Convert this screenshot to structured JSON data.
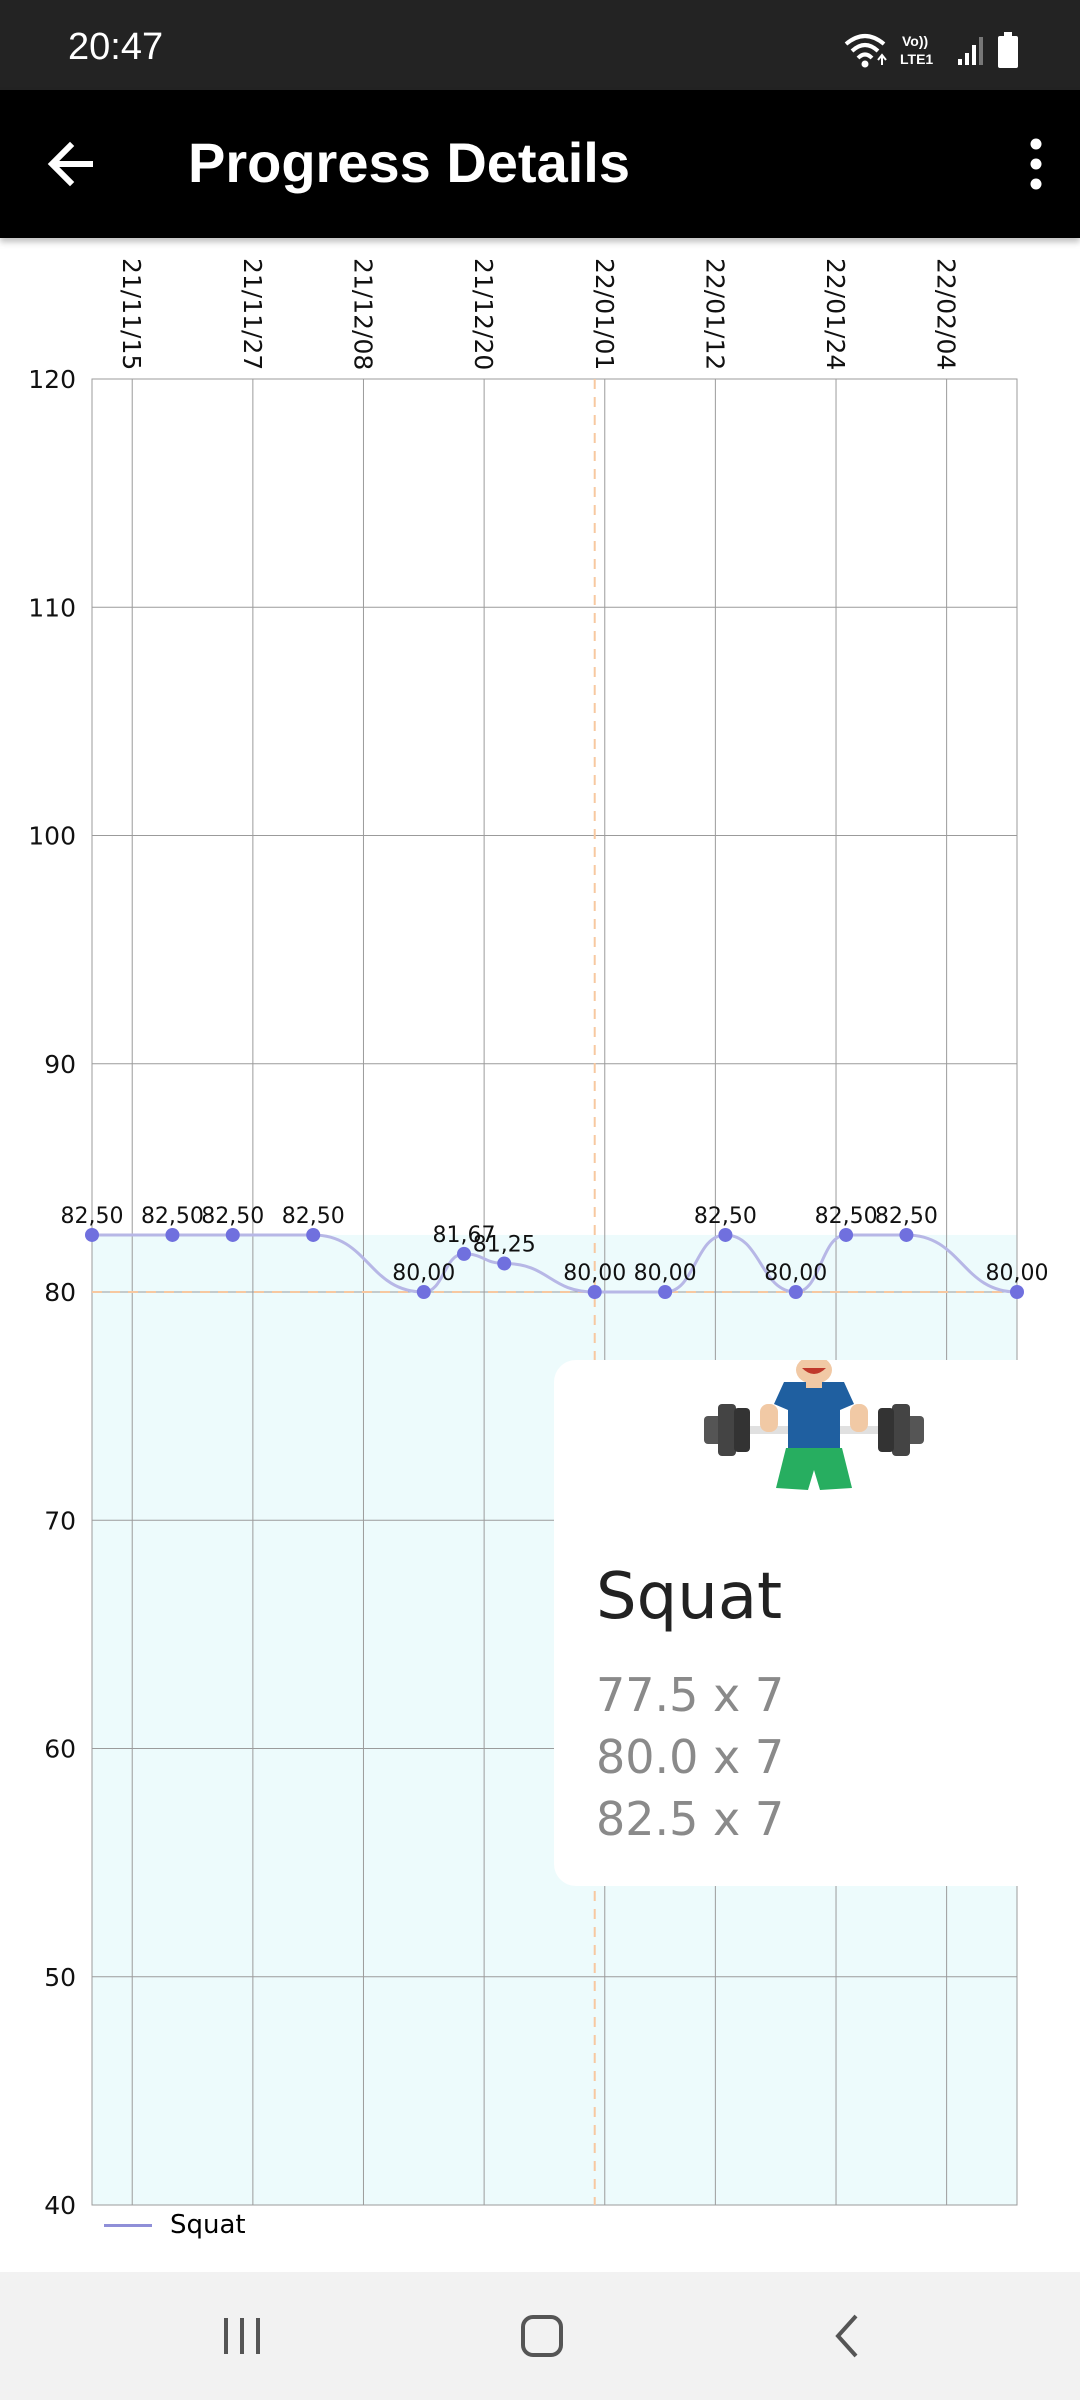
{
  "status_bar": {
    "time": "20:47",
    "network_label_top": "Vo))",
    "network_label_bottom": "LTE1",
    "icons": [
      "wifi-icon",
      "signal-icon",
      "battery-icon"
    ]
  },
  "app_bar": {
    "title": "Progress Details",
    "back_icon": "arrow-left-icon",
    "menu_icon": "more-vertical-icon"
  },
  "exercise_card": {
    "title": "Squat",
    "icon": "weightlifter-icon",
    "sets": [
      "77.5 x 7",
      "80.0 x 7",
      "82.5 x 7"
    ]
  },
  "legend": {
    "label": "Squat",
    "color": "#8f8fd8"
  },
  "chart_data": {
    "type": "line",
    "x_tick_labels": [
      "21/11/15",
      "21/11/27",
      "21/12/08",
      "21/12/20",
      "22/01/01",
      "22/01/12",
      "22/01/24",
      "22/02/04"
    ],
    "y_ticks": [
      40,
      50,
      60,
      70,
      80,
      90,
      100,
      110,
      120
    ],
    "ylim": [
      40,
      120
    ],
    "series": [
      {
        "name": "Squat",
        "x": [
          "21/11/11",
          "21/11/19",
          "21/11/25",
          "21/12/03",
          "21/12/14",
          "21/12/18",
          "21/12/22",
          "21/12/31",
          "22/01/07",
          "22/01/13",
          "22/01/20",
          "22/01/25",
          "22/01/31",
          "22/02/11"
        ],
        "values": [
          82.5,
          82.5,
          82.5,
          82.5,
          80.0,
          81.67,
          81.25,
          80.0,
          80.0,
          82.5,
          80.0,
          82.5,
          82.5,
          80.0
        ],
        "labels": [
          "82,50",
          "82,50",
          "82,50",
          "82,50",
          "80,00",
          "81,67",
          "81,25",
          "80,00",
          "80,00",
          "82,50",
          "80,00",
          "82,50",
          "82,50",
          "80,00"
        ]
      }
    ],
    "highlight": {
      "x": "21/12/31",
      "y": 80.0
    },
    "colors": {
      "line": "#b7b7e6",
      "point": "#7070de",
      "fill": "#edfbfc",
      "grid": "#9b9b9b",
      "highlight": "#f7c8a0"
    },
    "grid": true,
    "legend_position": "bottom-left"
  },
  "nav_bar": {
    "items": [
      "recent-apps-icon",
      "home-icon",
      "back-icon"
    ]
  }
}
